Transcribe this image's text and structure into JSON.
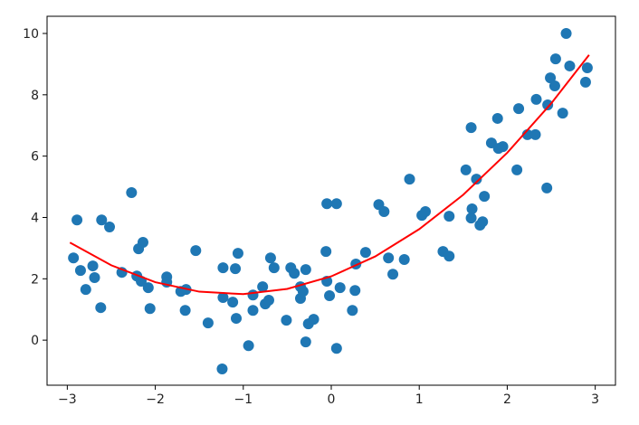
{
  "chart_data": {
    "type": "scatter",
    "xlim": [
      -3.23,
      3.23
    ],
    "ylim": [
      -1.47,
      10.56
    ],
    "xticks": [
      {
        "value": -3,
        "label": "−3"
      },
      {
        "value": -2,
        "label": "−2"
      },
      {
        "value": -1,
        "label": "−1"
      },
      0,
      1,
      2,
      3
    ],
    "yticks": [
      0,
      2,
      4,
      6,
      8,
      10
    ],
    "series": [
      {
        "type": "scatter",
        "color": "#1f77b4",
        "x": [
          -2.93,
          -2.89,
          -2.85,
          -2.79,
          -2.71,
          -2.69,
          -2.62,
          -2.61,
          -2.52,
          -2.38,
          -2.27,
          -2.21,
          -2.19,
          -2.14,
          -2.16,
          -2.08,
          -2.06,
          -1.87,
          -1.87,
          -1.71,
          -1.65,
          -1.66,
          -1.54,
          -1.4,
          -1.23,
          -1.24,
          -1.23,
          -1.12,
          -1.09,
          -1.06,
          -1.08,
          -0.94,
          -0.89,
          -0.89,
          -0.78,
          -0.75,
          -0.71,
          -0.69,
          -0.65,
          -0.51,
          -0.46,
          -0.42,
          -0.35,
          -0.35,
          -0.32,
          -0.29,
          -0.29,
          -0.26,
          -0.2,
          -0.06,
          -0.05,
          -0.05,
          -0.02,
          0.06,
          0.06,
          0.1,
          0.24,
          0.27,
          0.28,
          0.39,
          0.54,
          0.6,
          0.65,
          0.7,
          0.83,
          0.89,
          1.03,
          1.07,
          1.27,
          1.34,
          1.34,
          1.53,
          1.59,
          1.59,
          1.6,
          1.65,
          1.69,
          1.72,
          1.74,
          1.82,
          1.89,
          1.9,
          1.95,
          2.11,
          2.13,
          2.23,
          2.32,
          2.33,
          2.45,
          2.46,
          2.49,
          2.54,
          2.55,
          2.63,
          2.67,
          2.71,
          2.89,
          2.91
        ],
        "values": [
          2.68,
          3.92,
          2.27,
          1.65,
          2.42,
          2.04,
          1.06,
          3.92,
          3.69,
          2.21,
          4.81,
          2.09,
          2.98,
          3.19,
          1.92,
          1.71,
          1.03,
          2.06,
          1.89,
          1.59,
          1.65,
          0.97,
          2.92,
          0.56,
          2.36,
          -0.94,
          1.39,
          1.24,
          2.33,
          2.83,
          0.71,
          -0.18,
          1.47,
          0.97,
          1.74,
          1.18,
          1.3,
          2.68,
          2.36,
          0.65,
          2.36,
          2.18,
          1.74,
          1.36,
          1.59,
          2.3,
          -0.06,
          0.53,
          0.68,
          2.89,
          4.45,
          1.92,
          1.45,
          4.45,
          -0.27,
          1.71,
          0.97,
          1.62,
          2.48,
          2.86,
          4.42,
          4.19,
          2.68,
          2.15,
          2.63,
          5.25,
          4.07,
          4.19,
          2.89,
          2.74,
          4.04,
          5.55,
          6.93,
          3.98,
          4.28,
          5.25,
          3.75,
          3.86,
          4.69,
          6.43,
          7.23,
          6.25,
          6.31,
          5.55,
          7.55,
          6.7,
          6.7,
          7.85,
          4.96,
          7.67,
          8.55,
          8.29,
          9.17,
          7.4,
          10.0,
          8.94,
          8.41,
          8.88
        ]
      },
      {
        "type": "line",
        "color": "#ff0000",
        "x": [
          -2.97,
          -2.5,
          -2,
          -1.5,
          -1,
          -0.5,
          0,
          0.5,
          1,
          1.5,
          2,
          2.5,
          2.93
        ],
        "values": [
          3.18,
          2.44,
          1.89,
          1.58,
          1.5,
          1.67,
          2.08,
          2.73,
          3.62,
          4.74,
          6.11,
          7.72,
          9.3
        ]
      }
    ]
  }
}
